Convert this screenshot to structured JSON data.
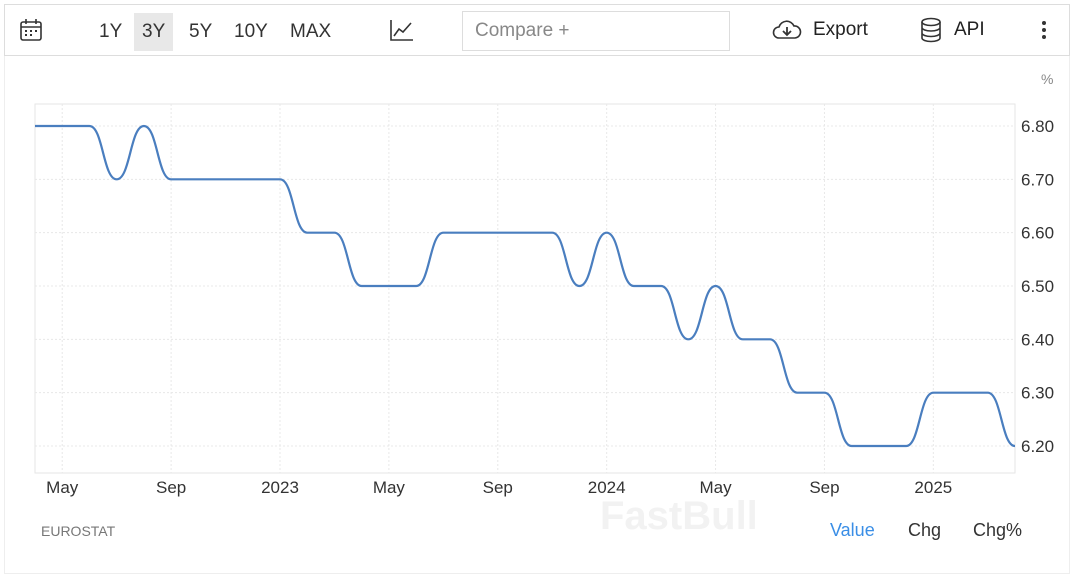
{
  "toolbar": {
    "ranges": [
      "1Y",
      "3Y",
      "5Y",
      "10Y",
      "MAX"
    ],
    "active_range": "3Y",
    "compare_placeholder": "Compare +",
    "export_label": "Export",
    "api_label": "API"
  },
  "footer": {
    "source": "EUROSTAT",
    "tabs": [
      "Value",
      "Chg",
      "Chg%"
    ],
    "active_tab": "Value",
    "watermark": "FastBull"
  },
  "colors": {
    "line": "#4a7ebf",
    "active_tab": "#3a8ee6"
  },
  "chart_data": {
    "type": "line",
    "unit_label": "%",
    "ylim": [
      6.2,
      6.8
    ],
    "yticks": [
      "6.80",
      "6.70",
      "6.60",
      "6.50",
      "6.40",
      "6.30",
      "6.20"
    ],
    "grid": true,
    "xticks": [
      "May",
      "Sep",
      "2023",
      "May",
      "Sep",
      "2024",
      "May",
      "Sep",
      "2025"
    ],
    "x": [
      "2022-04",
      "2022-05",
      "2022-06",
      "2022-07",
      "2022-08",
      "2022-09",
      "2022-10",
      "2022-11",
      "2022-12",
      "2023-01",
      "2023-02",
      "2023-03",
      "2023-04",
      "2023-05",
      "2023-06",
      "2023-07",
      "2023-08",
      "2023-09",
      "2023-10",
      "2023-11",
      "2023-12",
      "2024-01",
      "2024-02",
      "2024-03",
      "2024-04",
      "2024-05",
      "2024-06",
      "2024-07",
      "2024-08",
      "2024-09",
      "2024-10",
      "2024-11",
      "2024-12",
      "2025-01",
      "2025-02",
      "2025-03",
      "2025-04"
    ],
    "series": [
      {
        "values": [
          6.8,
          6.8,
          6.8,
          6.7,
          6.8,
          6.7,
          6.7,
          6.7,
          6.7,
          6.7,
          6.6,
          6.6,
          6.5,
          6.5,
          6.5,
          6.6,
          6.6,
          6.6,
          6.6,
          6.6,
          6.5,
          6.6,
          6.5,
          6.5,
          6.4,
          6.5,
          6.4,
          6.4,
          6.3,
          6.3,
          6.2,
          6.2,
          6.2,
          6.3,
          6.3,
          6.3,
          6.2
        ]
      }
    ]
  }
}
